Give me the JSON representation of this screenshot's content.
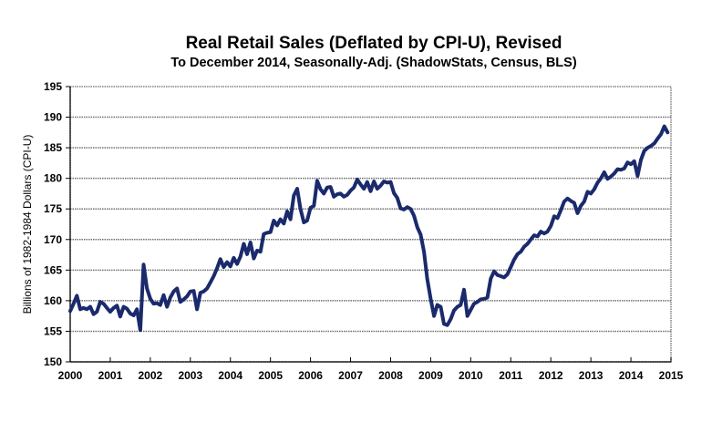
{
  "chart_data": {
    "type": "line",
    "title": "Real Retail Sales (Deflated by CPI-U), Revised",
    "subtitle": "To December 2014, Seasonally-Adj. (ShadowStats, Census, BLS)",
    "xlabel": "",
    "ylabel": "Billions of 1982-1984 Dollars (CPI-U)",
    "xlim": [
      2000,
      2015
    ],
    "ylim": [
      150,
      195
    ],
    "x_ticks": [
      "2000",
      "2001",
      "2002",
      "2003",
      "2004",
      "2005",
      "2006",
      "2007",
      "2008",
      "2009",
      "2010",
      "2011",
      "2012",
      "2013",
      "2014",
      "2015"
    ],
    "y_ticks": [
      "150",
      "155",
      "160",
      "165",
      "170",
      "175",
      "180",
      "185",
      "190",
      "195"
    ],
    "grid": "horizontal",
    "legend": "none",
    "line_color": "#1a2a6c",
    "x_start": 2000.0,
    "x_step_years": 0.0833333,
    "series": [
      {
        "name": "Real Retail Sales",
        "values": [
          158.3,
          159.5,
          160.8,
          158.6,
          158.8,
          158.6,
          159.0,
          157.8,
          158.2,
          159.8,
          159.5,
          158.8,
          158.2,
          158.8,
          159.2,
          157.4,
          159.0,
          158.7,
          157.9,
          157.6,
          158.6,
          155.2,
          165.9,
          162.0,
          160.3,
          159.5,
          159.6,
          159.3,
          160.9,
          159.0,
          160.5,
          161.5,
          162.0,
          159.8,
          160.2,
          160.7,
          161.5,
          161.6,
          158.6,
          161.3,
          161.5,
          162.0,
          163.0,
          164.0,
          165.3,
          166.8,
          165.5,
          166.3,
          165.6,
          167.0,
          166.0,
          167.2,
          169.3,
          167.6,
          169.5,
          166.9,
          168.2,
          168.0,
          170.9,
          171.1,
          171.2,
          173.1,
          172.3,
          173.3,
          172.6,
          174.6,
          173.3,
          177.2,
          178.3,
          175.0,
          172.8,
          173.1,
          175.2,
          175.5,
          179.6,
          178.2,
          177.5,
          178.5,
          178.6,
          177.0,
          177.4,
          177.5,
          177.0,
          177.3,
          178.0,
          178.5,
          179.8,
          179.0,
          178.3,
          179.4,
          177.9,
          179.5,
          178.3,
          178.8,
          179.5,
          179.3,
          179.4,
          177.6,
          176.8,
          175.1,
          174.9,
          175.3,
          175.0,
          173.9,
          172.0,
          170.8,
          168.0,
          163.5,
          160.3,
          157.5,
          159.3,
          159.0,
          156.2,
          156.0,
          157.0,
          158.4,
          159.0,
          159.3,
          161.8,
          157.5,
          158.5,
          159.5,
          159.8,
          160.2,
          160.3,
          160.5,
          163.6,
          164.8,
          164.2,
          164.0,
          163.8,
          164.3,
          165.5,
          166.7,
          167.6,
          168.0,
          168.8,
          169.3,
          170.0,
          170.7,
          170.5,
          171.3,
          171.0,
          171.3,
          172.2,
          173.8,
          173.5,
          174.8,
          176.2,
          176.7,
          176.3,
          176.0,
          174.3,
          175.5,
          176.2,
          177.8,
          177.5,
          178.2,
          179.3,
          180.0,
          181.0,
          179.9,
          180.3,
          180.8,
          181.5,
          181.4,
          181.6,
          182.6,
          182.3,
          182.8,
          180.4,
          183.0,
          184.5,
          185.0,
          185.3,
          185.7,
          186.5,
          187.2,
          188.5,
          187.5
        ]
      }
    ]
  }
}
